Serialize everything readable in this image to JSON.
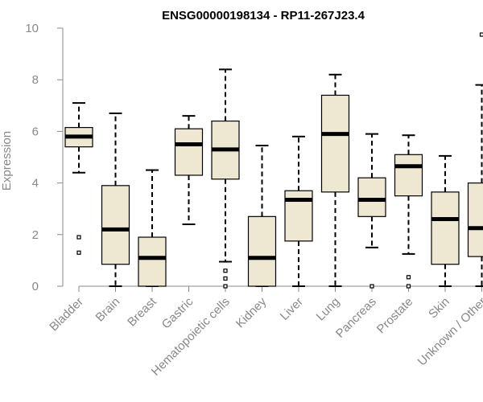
{
  "chart_data": {
    "type": "boxplot",
    "title": "ENSG00000198134 - RP11-267J23.4",
    "xlabel": "",
    "ylabel": "Expression",
    "ylim": [
      0,
      10
    ],
    "yticks": [
      0,
      2,
      4,
      6,
      8,
      10
    ],
    "box_color": "#EEE8D2",
    "categories": [
      "Bladder",
      "Brain",
      "Breast",
      "Gastric",
      "Hematopoietic cells",
      "Kidney",
      "Liver",
      "Lung",
      "Pancreas",
      "Prostate",
      "Skin",
      "Unknown / Other"
    ],
    "boxes": [
      {
        "name": "Bladder",
        "whisker_low": 4.4,
        "q1": 5.4,
        "median": 5.8,
        "q3": 6.15,
        "whisker_high": 7.1,
        "outliers": [
          1.3,
          1.9
        ]
      },
      {
        "name": "Brain",
        "whisker_low": 0.0,
        "q1": 0.85,
        "median": 2.2,
        "q3": 3.9,
        "whisker_high": 6.7,
        "outliers": []
      },
      {
        "name": "Breast",
        "whisker_low": 0.0,
        "q1": 0.0,
        "median": 1.1,
        "q3": 1.9,
        "whisker_high": 4.5,
        "outliers": []
      },
      {
        "name": "Gastric",
        "whisker_low": 2.4,
        "q1": 4.3,
        "median": 5.5,
        "q3": 6.1,
        "whisker_high": 6.6,
        "outliers": []
      },
      {
        "name": "Hematopoietic cells",
        "whisker_low": 0.95,
        "q1": 4.15,
        "median": 5.3,
        "q3": 6.4,
        "whisker_high": 8.4,
        "outliers": [
          0.0,
          0.3,
          0.6
        ]
      },
      {
        "name": "Kidney",
        "whisker_low": 0.0,
        "q1": 0.0,
        "median": 1.1,
        "q3": 2.7,
        "whisker_high": 5.45,
        "outliers": []
      },
      {
        "name": "Liver",
        "whisker_low": 0.0,
        "q1": 1.75,
        "median": 3.35,
        "q3": 3.7,
        "whisker_high": 5.8,
        "outliers": []
      },
      {
        "name": "Lung",
        "whisker_low": 0.0,
        "q1": 3.65,
        "median": 5.9,
        "q3": 7.4,
        "whisker_high": 8.2,
        "outliers": []
      },
      {
        "name": "Pancreas",
        "whisker_low": 1.5,
        "q1": 2.7,
        "median": 3.35,
        "q3": 4.2,
        "whisker_high": 5.9,
        "outliers": [
          0.0
        ]
      },
      {
        "name": "Prostate",
        "whisker_low": 1.25,
        "q1": 3.5,
        "median": 4.65,
        "q3": 5.1,
        "whisker_high": 5.85,
        "outliers": [
          0.0,
          0.35
        ]
      },
      {
        "name": "Skin",
        "whisker_low": 0.0,
        "q1": 0.85,
        "median": 2.6,
        "q3": 3.65,
        "whisker_high": 5.05,
        "outliers": []
      },
      {
        "name": "Unknown / Other",
        "whisker_low": 0.0,
        "q1": 1.15,
        "median": 2.25,
        "q3": 4.0,
        "whisker_high": 7.8,
        "outliers": [
          9.75
        ]
      }
    ]
  }
}
